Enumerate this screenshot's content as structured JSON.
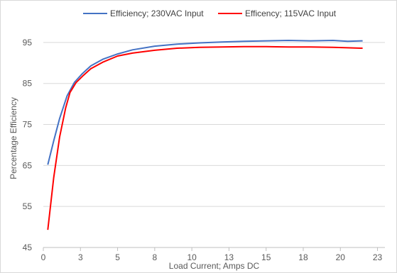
{
  "chart_data": {
    "type": "line",
    "title": "",
    "xlabel": "Load Current; Amps DC",
    "ylabel": "Percentage Efficiency",
    "xlim": [
      0,
      23
    ],
    "ylim": [
      45,
      100
    ],
    "x_ticks": [
      "0",
      "3",
      "5",
      "8",
      "10",
      "13",
      "15",
      "18",
      "20",
      "23"
    ],
    "x_tick_values": [
      0,
      2.5,
      5,
      7.5,
      10,
      12.5,
      15,
      17.5,
      20,
      22.5
    ],
    "y_ticks": [
      "45",
      "55",
      "65",
      "75",
      "85",
      "95"
    ],
    "y_tick_values": [
      45,
      55,
      65,
      75,
      85,
      95
    ],
    "grid": "horizontal",
    "legend": "top",
    "series": [
      {
        "name": "Efficiency; 230VAC Input",
        "color": "#4472c4",
        "points": [
          [
            0.3,
            65.2
          ],
          [
            0.7,
            71
          ],
          [
            1.1,
            76.5
          ],
          [
            1.6,
            82
          ],
          [
            2.1,
            85.3
          ],
          [
            2.6,
            87.3
          ],
          [
            3.2,
            89.3
          ],
          [
            4.0,
            90.9
          ],
          [
            5.0,
            92.2
          ],
          [
            6.0,
            93.2
          ],
          [
            7.5,
            94.1
          ],
          [
            9.0,
            94.6
          ],
          [
            10.5,
            94.9
          ],
          [
            12.0,
            95.1
          ],
          [
            13.5,
            95.3
          ],
          [
            15.0,
            95.4
          ],
          [
            16.5,
            95.5
          ],
          [
            18.0,
            95.4
          ],
          [
            19.5,
            95.5
          ],
          [
            20.5,
            95.3
          ],
          [
            21.5,
            95.4
          ]
        ]
      },
      {
        "name": "Efficency; 115VAC Input",
        "color": "#ff0000",
        "points": [
          [
            0.3,
            49.3
          ],
          [
            0.7,
            62
          ],
          [
            1.1,
            72
          ],
          [
            1.5,
            79
          ],
          [
            1.8,
            82.8
          ],
          [
            2.2,
            85.2
          ],
          [
            2.7,
            87
          ],
          [
            3.2,
            88.6
          ],
          [
            4.0,
            90.2
          ],
          [
            5.0,
            91.7
          ],
          [
            6.0,
            92.4
          ],
          [
            7.5,
            93.1
          ],
          [
            9.0,
            93.6
          ],
          [
            10.5,
            93.8
          ],
          [
            12.0,
            93.9
          ],
          [
            13.5,
            94.0
          ],
          [
            15.0,
            94.0
          ],
          [
            16.5,
            93.9
          ],
          [
            18.0,
            93.9
          ],
          [
            19.5,
            93.8
          ],
          [
            20.5,
            93.7
          ],
          [
            21.5,
            93.6
          ]
        ]
      }
    ]
  }
}
